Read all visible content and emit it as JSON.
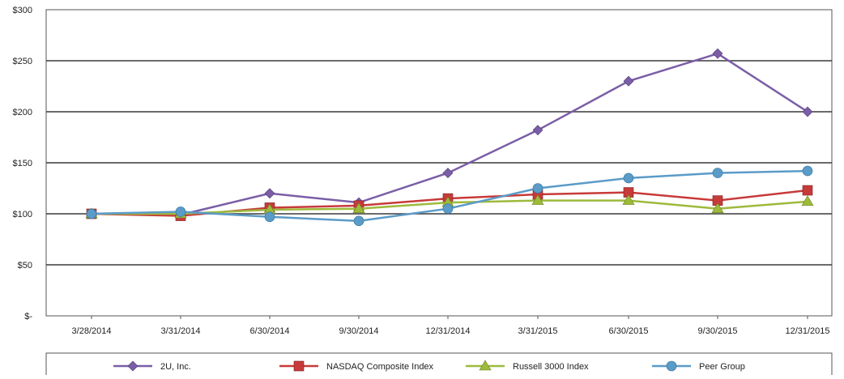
{
  "chart_data": {
    "type": "line",
    "title": "",
    "xlabel": "",
    "ylabel": "",
    "categories": [
      "3/28/2014",
      "3/31/2014",
      "6/30/2014",
      "9/30/2014",
      "12/31/2014",
      "3/31/2015",
      "6/30/2015",
      "9/30/2015",
      "12/31/2015"
    ],
    "y_tick_values": [
      0,
      50,
      100,
      150,
      200,
      250,
      300
    ],
    "y_tick_labels": [
      "$-",
      "$50",
      "$100",
      "$150",
      "$200",
      "$250",
      "$300"
    ],
    "ylim": [
      0,
      300
    ],
    "grid": "horizontal",
    "legend_position": "bottom",
    "series": [
      {
        "name": "2U, Inc.",
        "color": "#7b5ea7",
        "marker": "diamond",
        "values": [
          100,
          99,
          120,
          111,
          140,
          182,
          230,
          257,
          200
        ]
      },
      {
        "name": "NASDAQ Composite Index",
        "color": "#c83a3a",
        "marker": "square",
        "values": [
          100,
          98,
          106,
          108,
          115,
          119,
          121,
          113,
          123
        ]
      },
      {
        "name": "Russell 3000 Index",
        "color": "#9dba3c",
        "marker": "triangle",
        "values": [
          100,
          100,
          104,
          105,
          111,
          113,
          113,
          105,
          112
        ]
      },
      {
        "name": "Peer Group",
        "color": "#5b9bc8",
        "marker": "circle",
        "values": [
          100,
          102,
          97,
          93,
          105,
          125,
          135,
          140,
          142
        ]
      }
    ]
  }
}
